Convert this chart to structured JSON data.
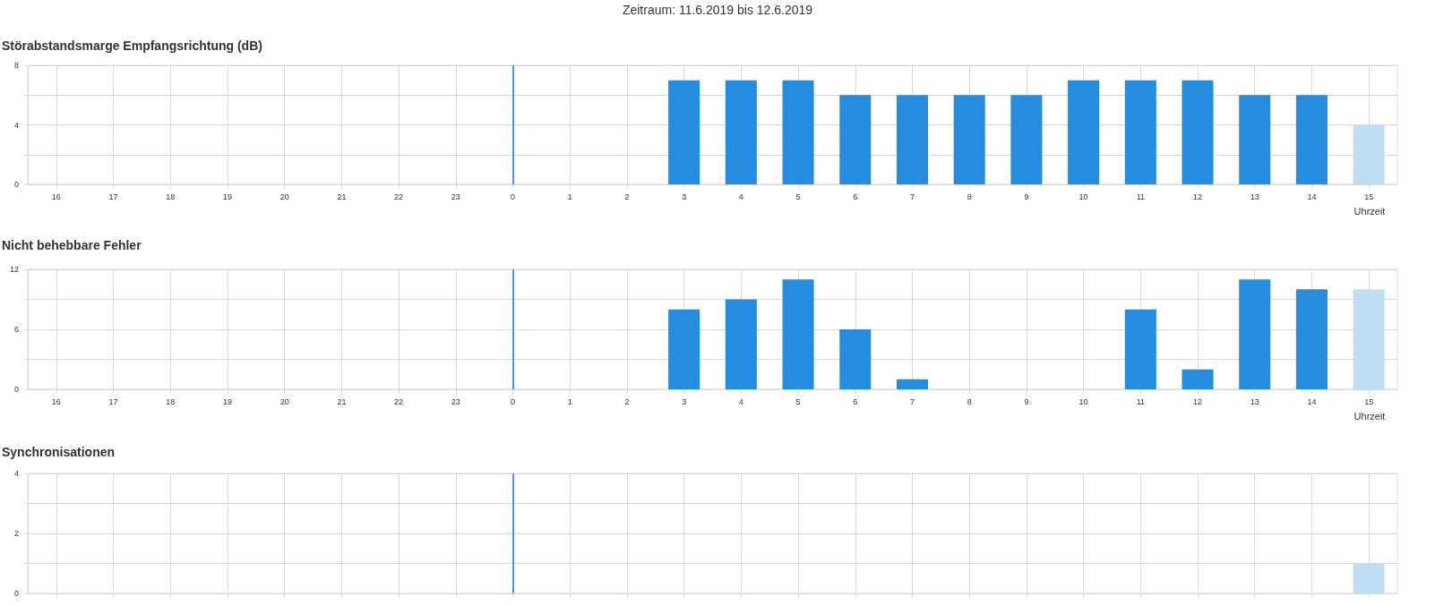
{
  "chart_data": [
    {
      "type": "bar",
      "title": "Störabstandsmarge Empfangsrichtung (dB)",
      "annotations": [
        "Zeitraum: 11.6.2019 bis 12.6.2019"
      ],
      "xlabel": "Uhrzeit",
      "categories": [
        "16",
        "17",
        "18",
        "19",
        "20",
        "21",
        "22",
        "23",
        "0",
        "1",
        "2",
        "3",
        "4",
        "5",
        "6",
        "7",
        "8",
        "9",
        "10",
        "11",
        "12",
        "13",
        "14",
        "15"
      ],
      "values": [
        null,
        null,
        null,
        null,
        null,
        null,
        null,
        null,
        null,
        null,
        null,
        7,
        7,
        7,
        6,
        6,
        6,
        6,
        7,
        7,
        7,
        6,
        6,
        4
      ],
      "colors": [
        "#268ce0",
        "#268ce0",
        "#268ce0",
        "#268ce0",
        "#268ce0",
        "#268ce0",
        "#268ce0",
        "#268ce0",
        "#268ce0",
        "#268ce0",
        "#268ce0",
        "#268ce0",
        "#268ce0",
        "#268ce0",
        "#268ce0",
        "#268ce0",
        "#268ce0",
        "#268ce0",
        "#268ce0",
        "#268ce0",
        "#268ce0",
        "#268ce0",
        "#268ce0",
        "#bfdef4"
      ],
      "ylim": [
        0,
        8
      ],
      "yticks": [
        0,
        {
          "value": 2,
          "label": null
        },
        4,
        {
          "value": 6,
          "label": null
        },
        8
      ],
      "grid": true,
      "ref_lines": [
        {
          "axis": "x",
          "value": "0",
          "color": "#4f96dc"
        }
      ]
    },
    {
      "type": "bar",
      "title": "Nicht behebbare Fehler",
      "xlabel": "Uhrzeit",
      "categories": [
        "16",
        "17",
        "18",
        "19",
        "20",
        "21",
        "22",
        "23",
        "0",
        "1",
        "2",
        "3",
        "4",
        "5",
        "6",
        "7",
        "8",
        "9",
        "10",
        "11",
        "12",
        "13",
        "14",
        "15"
      ],
      "values": [
        null,
        null,
        null,
        null,
        null,
        null,
        null,
        null,
        null,
        null,
        null,
        8,
        9,
        11,
        6,
        1,
        0,
        0,
        0,
        8,
        2,
        11,
        10,
        10
      ],
      "colors": [
        "#268ce0",
        "#268ce0",
        "#268ce0",
        "#268ce0",
        "#268ce0",
        "#268ce0",
        "#268ce0",
        "#268ce0",
        "#268ce0",
        "#268ce0",
        "#268ce0",
        "#268ce0",
        "#268ce0",
        "#268ce0",
        "#268ce0",
        "#268ce0",
        "#268ce0",
        "#268ce0",
        "#268ce0",
        "#268ce0",
        "#268ce0",
        "#268ce0",
        "#268ce0",
        "#bfdef4"
      ],
      "ylim": [
        0,
        12
      ],
      "yticks": [
        0,
        {
          "value": 3,
          "label": null
        },
        6,
        {
          "value": 9,
          "label": null
        },
        12
      ],
      "grid": true,
      "ref_lines": [
        {
          "axis": "x",
          "value": "0",
          "color": "#4f96dc"
        }
      ]
    },
    {
      "type": "bar",
      "title": "Synchronisationen",
      "categories": [
        "16",
        "17",
        "18",
        "19",
        "20",
        "21",
        "22",
        "23",
        "0",
        "1",
        "2",
        "3",
        "4",
        "5",
        "6",
        "7",
        "8",
        "9",
        "10",
        "11",
        "12",
        "13",
        "14",
        "15"
      ],
      "values": [
        null,
        null,
        null,
        null,
        null,
        null,
        null,
        null,
        null,
        null,
        null,
        0,
        0,
        0,
        0,
        0,
        0,
        0,
        0,
        0,
        0,
        0,
        0,
        1
      ],
      "colors": [
        "#268ce0",
        "#268ce0",
        "#268ce0",
        "#268ce0",
        "#268ce0",
        "#268ce0",
        "#268ce0",
        "#268ce0",
        "#268ce0",
        "#268ce0",
        "#268ce0",
        "#268ce0",
        "#268ce0",
        "#268ce0",
        "#268ce0",
        "#268ce0",
        "#268ce0",
        "#268ce0",
        "#268ce0",
        "#268ce0",
        "#268ce0",
        "#268ce0",
        "#268ce0",
        "#bfdef4"
      ],
      "ylim": [
        0,
        4
      ],
      "yticks": [
        0,
        {
          "value": 1,
          "label": null
        },
        2,
        {
          "value": 3,
          "label": null
        },
        4
      ],
      "grid": true,
      "tick_labels": "y",
      "ref_lines": [
        {
          "axis": "x",
          "value": "0",
          "color": "#4f96dc"
        }
      ]
    }
  ]
}
